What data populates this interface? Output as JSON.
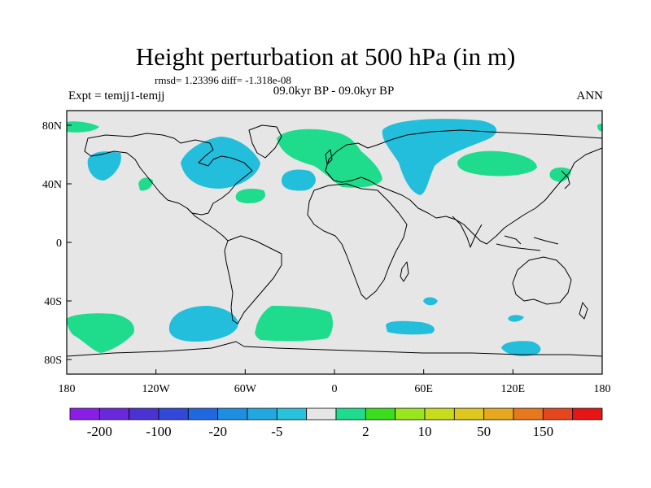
{
  "title": "Height perturbation at 500 hPa (in m)",
  "stats_text": "rmsd= 1.23396 diff= -1.318e-08",
  "left_label": "Expt = temjj1-temjj",
  "center_label": "09.0kyr BP - 09.0kyr BP",
  "right_label": "ANN",
  "lon_ticks": [
    "180",
    "120W",
    "60W",
    "0",
    "60E",
    "120E",
    "180"
  ],
  "lat_ticks": [
    "80N",
    "40N",
    "0",
    "40S",
    "80S"
  ],
  "colorbar": {
    "colors": [
      "#8a1ee6",
      "#6a28dc",
      "#4b32d2",
      "#3148d8",
      "#2068e0",
      "#1e8ee0",
      "#22a8e0",
      "#28c2dc",
      "#e6e6e6",
      "#1edc8c",
      "#3cdc1e",
      "#9ae61e",
      "#c8dc1e",
      "#dcc81e",
      "#e6a81e",
      "#e6781e",
      "#e6461e",
      "#e61414"
    ],
    "labels": [
      "-200",
      "-100",
      "-20",
      "-5",
      "2",
      "10",
      "50",
      "150"
    ]
  },
  "map_style": {
    "background": "#e6e6e6",
    "negative_fill": "#22bedc",
    "positive_fill": "#1edc8c",
    "coast": "#000000"
  }
}
